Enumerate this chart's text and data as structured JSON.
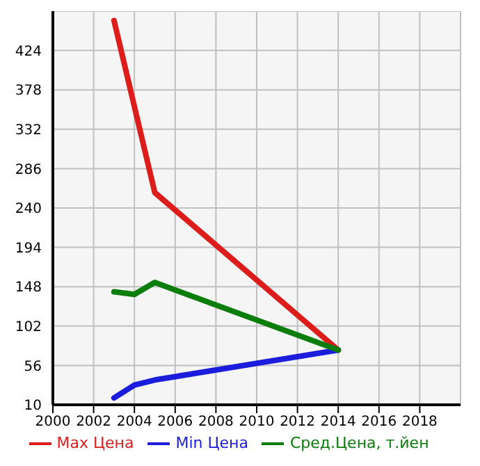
{
  "chart_data": {
    "type": "line",
    "x": [
      2003,
      2004,
      2005,
      2014
    ],
    "series": [
      {
        "name": "Max Цена",
        "color": "#dd1c1c",
        "values": [
          459,
          null,
          258,
          74
        ]
      },
      {
        "name": "Min Цена",
        "color": "#1c1cdd",
        "values": [
          18,
          33,
          39,
          74
        ]
      },
      {
        "name": "Сред.Цена, т.йен",
        "color": "#0a7d0a",
        "values": [
          142,
          139,
          153,
          74
        ]
      }
    ],
    "xlim": [
      2000,
      2020
    ],
    "xticks": [
      2000,
      2002,
      2004,
      2006,
      2008,
      2010,
      2012,
      2014,
      2016,
      2018
    ],
    "ylim": [
      10,
      470
    ],
    "yticks": [
      10,
      56,
      102,
      148,
      194,
      240,
      286,
      332,
      378,
      424
    ],
    "grid": true,
    "legend": "bottom",
    "marker": "none",
    "line_style": "solid"
  }
}
